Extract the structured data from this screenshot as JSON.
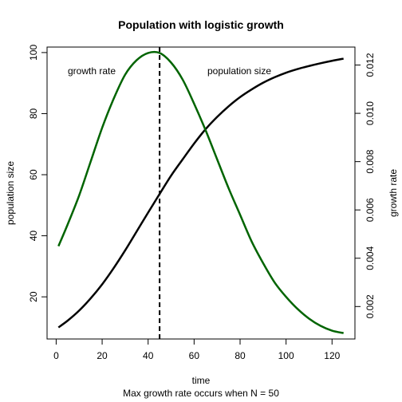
{
  "chart_data": {
    "type": "line",
    "title": "Population with logistic growth",
    "xlabel": "time",
    "ylabel": "population size",
    "y2label": "growth rate",
    "subtitle": "Max growth rate occurs when N = 50",
    "xlim": [
      -3.96,
      129.96
    ],
    "ylim": [
      6.2,
      101.8
    ],
    "y2lim": [
      0.000656,
      0.012744
    ],
    "x_ticks": [
      "0",
      "20",
      "40",
      "60",
      "80",
      "100",
      "120"
    ],
    "y_ticks": [
      "20",
      "40",
      "60",
      "80",
      "100"
    ],
    "y2_ticks": [
      "0.002",
      "0.004",
      "0.006",
      "0.008",
      "0.010",
      "0.012"
    ],
    "grid": false,
    "vline": {
      "x": 45,
      "style": "dashed"
    },
    "colors": {
      "population": "#000000",
      "growth": "#006400"
    },
    "labels": {
      "growth_rate": "growth rate",
      "population_size": "population size"
    },
    "series": [
      {
        "name": "population size",
        "axis": "left",
        "color": "#000000",
        "x": [
          1,
          5,
          10,
          15,
          20,
          25,
          30,
          35,
          40,
          45,
          50,
          55,
          60,
          65,
          70,
          75,
          80,
          85,
          90,
          95,
          100,
          105,
          110,
          115,
          120,
          125
        ],
        "y": [
          10.0,
          12.2,
          15.5,
          19.5,
          24.1,
          29.4,
          35.2,
          41.4,
          47.6,
          53.7,
          59.7,
          65.0,
          70.2,
          74.9,
          78.9,
          82.4,
          85.4,
          87.9,
          90.1,
          91.9,
          93.4,
          94.6,
          95.6,
          96.5,
          97.3,
          98.0
        ]
      },
      {
        "name": "growth rate",
        "axis": "right",
        "color": "#006400",
        "x": [
          1,
          5,
          10,
          15,
          20,
          25,
          30,
          35,
          40,
          45,
          50,
          55,
          60,
          65,
          70,
          75,
          80,
          85,
          90,
          95,
          100,
          105,
          110,
          115,
          120,
          125
        ],
        "y": [
          0.0045,
          0.0054,
          0.0066,
          0.008,
          0.0094,
          0.0106,
          0.0116,
          0.0122,
          0.0125,
          0.0125,
          0.0121,
          0.0114,
          0.0104,
          0.0093,
          0.0081,
          0.0069,
          0.0058,
          0.0047,
          0.0038,
          0.003,
          0.0024,
          0.0019,
          0.0015,
          0.0012,
          0.001,
          0.0009
        ]
      }
    ]
  }
}
